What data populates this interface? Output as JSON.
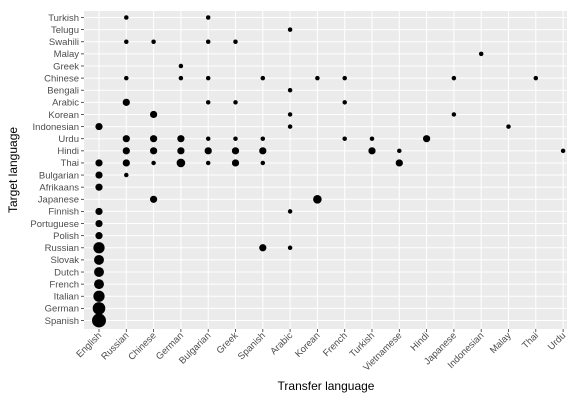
{
  "chart_data": {
    "type": "scatter",
    "xlabel": "Transfer language",
    "ylabel": "Target language",
    "grid": true,
    "colors": {
      "panel": "#ebebeb",
      "grid": "#ffffff",
      "point": "#000000",
      "tick_text": "#4d4d4d"
    },
    "x_categories": [
      "English",
      "Russian",
      "Chinese",
      "German",
      "Bulgarian",
      "Greek",
      "Spanish",
      "Arabic",
      "Korean",
      "French",
      "Turkish",
      "Vietnamese",
      "Hindi",
      "Japanese",
      "Indonesian",
      "Malay",
      "Thai",
      "Urdu"
    ],
    "y_categories": [
      "Turkish",
      "Telugu",
      "Swahili",
      "Malay",
      "Greek",
      "Chinese",
      "Bengali",
      "Arabic",
      "Korean",
      "Indonesian",
      "Urdu",
      "Hindi",
      "Thai",
      "Bulgarian",
      "Afrikaans",
      "Japanese",
      "Finnish",
      "Portuguese",
      "Polish",
      "Russian",
      "Slovak",
      "Dutch",
      "French",
      "Italian",
      "German",
      "Spanish"
    ],
    "points": [
      {
        "x": "Russian",
        "y": "Turkish",
        "size": 1
      },
      {
        "x": "Bulgarian",
        "y": "Turkish",
        "size": 1
      },
      {
        "x": "Arabic",
        "y": "Telugu",
        "size": 1
      },
      {
        "x": "Russian",
        "y": "Swahili",
        "size": 1
      },
      {
        "x": "Chinese",
        "y": "Swahili",
        "size": 1
      },
      {
        "x": "Bulgarian",
        "y": "Swahili",
        "size": 1
      },
      {
        "x": "Greek",
        "y": "Swahili",
        "size": 1
      },
      {
        "x": "Indonesian",
        "y": "Malay",
        "size": 1
      },
      {
        "x": "German",
        "y": "Greek",
        "size": 1
      },
      {
        "x": "Russian",
        "y": "Chinese",
        "size": 1
      },
      {
        "x": "German",
        "y": "Chinese",
        "size": 1
      },
      {
        "x": "Bulgarian",
        "y": "Chinese",
        "size": 1
      },
      {
        "x": "Spanish",
        "y": "Chinese",
        "size": 1
      },
      {
        "x": "Korean",
        "y": "Chinese",
        "size": 1
      },
      {
        "x": "French",
        "y": "Chinese",
        "size": 1
      },
      {
        "x": "Japanese",
        "y": "Chinese",
        "size": 1
      },
      {
        "x": "Thai",
        "y": "Chinese",
        "size": 1
      },
      {
        "x": "Arabic",
        "y": "Bengali",
        "size": 1
      },
      {
        "x": "Russian",
        "y": "Arabic",
        "size": 2
      },
      {
        "x": "Bulgarian",
        "y": "Arabic",
        "size": 1
      },
      {
        "x": "Greek",
        "y": "Arabic",
        "size": 1
      },
      {
        "x": "French",
        "y": "Arabic",
        "size": 1
      },
      {
        "x": "Chinese",
        "y": "Korean",
        "size": 2
      },
      {
        "x": "Arabic",
        "y": "Korean",
        "size": 1
      },
      {
        "x": "Japanese",
        "y": "Korean",
        "size": 1
      },
      {
        "x": "English",
        "y": "Indonesian",
        "size": 2
      },
      {
        "x": "Arabic",
        "y": "Indonesian",
        "size": 1
      },
      {
        "x": "Malay",
        "y": "Indonesian",
        "size": 1
      },
      {
        "x": "Russian",
        "y": "Urdu",
        "size": 2
      },
      {
        "x": "Chinese",
        "y": "Urdu",
        "size": 2
      },
      {
        "x": "German",
        "y": "Urdu",
        "size": 2
      },
      {
        "x": "Bulgarian",
        "y": "Urdu",
        "size": 1
      },
      {
        "x": "Greek",
        "y": "Urdu",
        "size": 1
      },
      {
        "x": "Spanish",
        "y": "Urdu",
        "size": 1
      },
      {
        "x": "French",
        "y": "Urdu",
        "size": 1
      },
      {
        "x": "Turkish",
        "y": "Urdu",
        "size": 1
      },
      {
        "x": "Hindi",
        "y": "Urdu",
        "size": 2
      },
      {
        "x": "Russian",
        "y": "Hindi",
        "size": 2
      },
      {
        "x": "Chinese",
        "y": "Hindi",
        "size": 2
      },
      {
        "x": "German",
        "y": "Hindi",
        "size": 2
      },
      {
        "x": "Bulgarian",
        "y": "Hindi",
        "size": 2
      },
      {
        "x": "Greek",
        "y": "Hindi",
        "size": 2
      },
      {
        "x": "Spanish",
        "y": "Hindi",
        "size": 2
      },
      {
        "x": "Turkish",
        "y": "Hindi",
        "size": 2
      },
      {
        "x": "Vietnamese",
        "y": "Hindi",
        "size": 1
      },
      {
        "x": "Urdu",
        "y": "Hindi",
        "size": 1
      },
      {
        "x": "English",
        "y": "Thai",
        "size": 2
      },
      {
        "x": "Russian",
        "y": "Thai",
        "size": 2
      },
      {
        "x": "Chinese",
        "y": "Thai",
        "size": 1
      },
      {
        "x": "German",
        "y": "Thai",
        "size": 2.5
      },
      {
        "x": "Bulgarian",
        "y": "Thai",
        "size": 1
      },
      {
        "x": "Greek",
        "y": "Thai",
        "size": 2
      },
      {
        "x": "Spanish",
        "y": "Thai",
        "size": 1
      },
      {
        "x": "Vietnamese",
        "y": "Thai",
        "size": 2
      },
      {
        "x": "English",
        "y": "Bulgarian",
        "size": 2
      },
      {
        "x": "Russian",
        "y": "Bulgarian",
        "size": 1
      },
      {
        "x": "English",
        "y": "Afrikaans",
        "size": 2
      },
      {
        "x": "Chinese",
        "y": "Japanese",
        "size": 2
      },
      {
        "x": "Korean",
        "y": "Japanese",
        "size": 2.5
      },
      {
        "x": "English",
        "y": "Finnish",
        "size": 2
      },
      {
        "x": "Arabic",
        "y": "Finnish",
        "size": 1
      },
      {
        "x": "English",
        "y": "Portuguese",
        "size": 2
      },
      {
        "x": "English",
        "y": "Polish",
        "size": 2
      },
      {
        "x": "English",
        "y": "Russian",
        "size": 3.5
      },
      {
        "x": "Spanish",
        "y": "Russian",
        "size": 2
      },
      {
        "x": "Arabic",
        "y": "Russian",
        "size": 1
      },
      {
        "x": "English",
        "y": "Slovak",
        "size": 3
      },
      {
        "x": "English",
        "y": "Dutch",
        "size": 3
      },
      {
        "x": "English",
        "y": "French",
        "size": 3
      },
      {
        "x": "English",
        "y": "Italian",
        "size": 3.5
      },
      {
        "x": "English",
        "y": "German",
        "size": 4
      },
      {
        "x": "English",
        "y": "Spanish",
        "size": 4.5
      }
    ]
  }
}
